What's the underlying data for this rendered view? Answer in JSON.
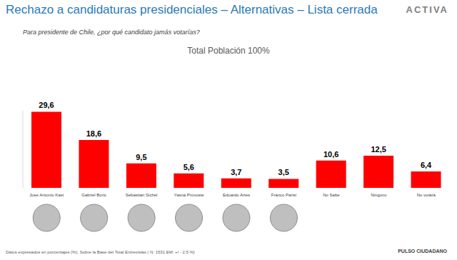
{
  "chart_data": {
    "type": "bar",
    "title": "Rechazo a candidaturas presidenciales – Alternativas – Lista cerrada",
    "subtitle": "Para presidente de Chile, ¿por qué candidato jamás votarías?",
    "annotations": [
      "Total Población 100%",
      "Datos expresados en porcentajes (%). Sobre la Base del Total Entrevistas (  N: 1531 EM: +/ - 2,5 %)",
      "ACTIVA",
      "PULSO CIUDADANO"
    ],
    "categories": [
      "Jose Antonio Kast",
      "Gabriel Boric",
      "Sebastian Sichel",
      "Yasna Provoste",
      "Eduardo Artes",
      "Franco Parisi",
      "No Sabe",
      "Ninguno",
      "No votará"
    ],
    "values": [
      29.6,
      18.6,
      9.5,
      5.6,
      3.7,
      3.5,
      10.6,
      12.5,
      6.4
    ],
    "value_labels": [
      "29,6",
      "18,6",
      "9,5",
      "5,6",
      "3,7",
      "3,5",
      "10,6",
      "12,5",
      "6,4"
    ],
    "color": "#ff0000",
    "ylim": [
      0,
      30
    ],
    "grid": false,
    "data_labels": true,
    "tick_labels": "x"
  }
}
